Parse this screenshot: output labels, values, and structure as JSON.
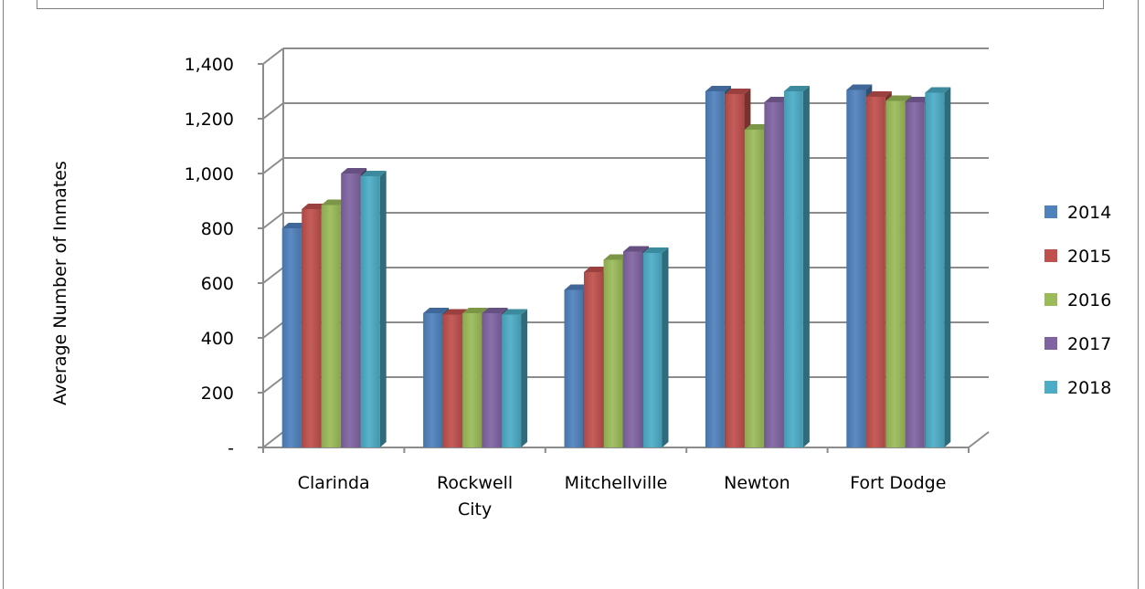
{
  "chart_data": {
    "type": "bar",
    "title": "",
    "xlabel": "",
    "ylabel": "Average Number of Inmates",
    "ylim": [
      0,
      1400
    ],
    "ytick_values": [
      0,
      200,
      400,
      600,
      800,
      1000,
      1200,
      1400
    ],
    "ytick_labels": [
      "-",
      "200",
      "400",
      "600",
      "800",
      "1,000",
      "1,200",
      "1,400"
    ],
    "categories": [
      "Clarinda",
      "Rockwell City",
      "Mitchellville",
      "Newton",
      "Fort Dodge"
    ],
    "category_lines": [
      [
        "Clarinda"
      ],
      [
        "Rockwell",
        "City"
      ],
      [
        "Mitchellville"
      ],
      [
        "Newton"
      ],
      [
        "Fort Dodge"
      ]
    ],
    "series": [
      {
        "name": "2014",
        "color": "#4f81bd",
        "values": [
          800,
          490,
          575,
          1300,
          1305
        ]
      },
      {
        "name": "2015",
        "color": "#c0504d",
        "values": [
          870,
          485,
          640,
          1290,
          1280
        ]
      },
      {
        "name": "2016",
        "color": "#9bbb59",
        "values": [
          885,
          490,
          685,
          1160,
          1265
        ]
      },
      {
        "name": "2017",
        "color": "#8064a2",
        "values": [
          1000,
          490,
          715,
          1260,
          1260
        ]
      },
      {
        "name": "2018",
        "color": "#4bacc6",
        "values": [
          990,
          485,
          710,
          1300,
          1295
        ]
      }
    ],
    "legend_position": "right",
    "grid": true
  }
}
